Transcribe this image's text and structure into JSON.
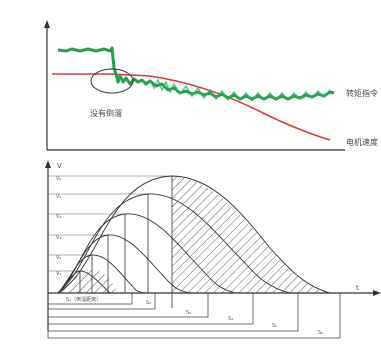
{
  "top": {
    "torque_label": "转矩指令",
    "speed_label": "电机速度",
    "annotation": "没有倒溜"
  },
  "bottom": {
    "y_axis": "V",
    "t_axis": "t",
    "v_levels": [
      "V₆",
      "V₅",
      "V₄",
      "V₃",
      "V₂",
      "V₁"
    ],
    "s_labels": [
      "S₁（倒溜距离）",
      "S₂",
      "S₃",
      "S₄",
      "S₅",
      "S₆"
    ]
  },
  "colors": {
    "torque": "#22a04e",
    "speed": "#d93a3a",
    "axis": "#333333"
  }
}
